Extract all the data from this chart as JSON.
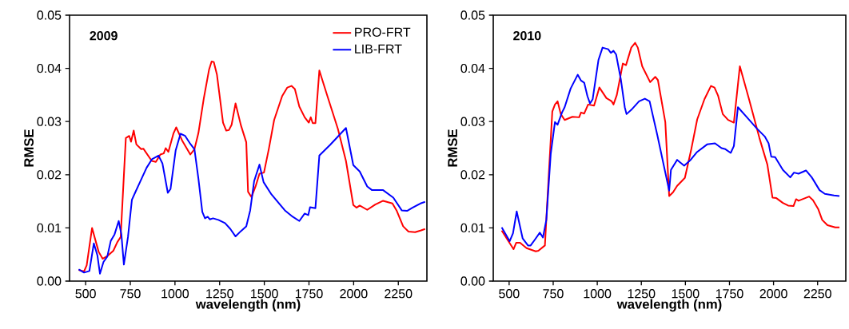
{
  "chart_data": [
    {
      "type": "line",
      "title": "2009",
      "xlabel": "wavelength (nm)",
      "ylabel": "RMSE",
      "legend": "top right",
      "grid": false,
      "marker": "none",
      "line_style": "solid",
      "xlim": [
        410,
        2410
      ],
      "xticks": [
        500,
        750,
        1000,
        1250,
        1500,
        1750,
        2000,
        2250
      ],
      "ylim": [
        0,
        0.05
      ],
      "yticks": [
        {
          "value": 0,
          "label": "0.00"
        },
        {
          "value": 0.01,
          "label": "0.01"
        },
        {
          "value": 0.02,
          "label": "0.02"
        },
        {
          "value": 0.03,
          "label": "0.03"
        },
        {
          "value": 0.04,
          "label": "0.04"
        },
        {
          "value": 0.05,
          "label": "0.05"
        }
      ],
      "series": [
        {
          "name": "PRO-FRT",
          "color": "#ff0000",
          "x": [
            461,
            491,
            506,
            536,
            558,
            573,
            595,
            625,
            655,
            677,
            696,
            725,
            744,
            754,
            769,
            784,
            811,
            823,
            870,
            893,
            918,
            937,
            948,
            963,
            992,
            1007,
            1042,
            1086,
            1109,
            1131,
            1161,
            1191,
            1205,
            1217,
            1235,
            1269,
            1287,
            1302,
            1317,
            1339,
            1369,
            1399,
            1409,
            1428,
            1451,
            1473,
            1498,
            1525,
            1555,
            1600,
            1629,
            1652,
            1671,
            1696,
            1726,
            1749,
            1760,
            1771,
            1786,
            1808,
            1853,
            1912,
            1957,
            1998,
            2016,
            2034,
            2076,
            2121,
            2165,
            2217,
            2240,
            2277,
            2307,
            2344,
            2374,
            2400
          ],
          "values": [
            0.0021,
            0.0018,
            0.003,
            0.01,
            0.0073,
            0.0055,
            0.0042,
            0.0048,
            0.0057,
            0.0073,
            0.0083,
            0.0269,
            0.0273,
            0.0262,
            0.0283,
            0.0257,
            0.0248,
            0.0249,
            0.0226,
            0.0224,
            0.0238,
            0.024,
            0.025,
            0.0243,
            0.0278,
            0.0289,
            0.0263,
            0.0238,
            0.0248,
            0.0278,
            0.0343,
            0.0398,
            0.0413,
            0.0412,
            0.0388,
            0.0298,
            0.0283,
            0.0284,
            0.0294,
            0.0334,
            0.0293,
            0.0261,
            0.0168,
            0.0158,
            0.0178,
            0.0202,
            0.0204,
            0.0248,
            0.0303,
            0.0348,
            0.0364,
            0.0367,
            0.0361,
            0.0328,
            0.0308,
            0.0298,
            0.0308,
            0.0297,
            0.0297,
            0.0396,
            0.0348,
            0.0286,
            0.0226,
            0.0143,
            0.0138,
            0.0142,
            0.0134,
            0.0144,
            0.0151,
            0.0146,
            0.0133,
            0.0103,
            0.0093,
            0.0092,
            0.0095,
            0.0098
          ]
        },
        {
          "name": "LIB-FRT",
          "color": "#0000ff",
          "x": [
            461,
            491,
            521,
            546,
            566,
            580,
            600,
            621,
            641,
            662,
            685,
            700,
            714,
            737,
            759,
            778,
            804,
            841,
            871,
            908,
            930,
            960,
            975,
            1004,
            1031,
            1057,
            1086,
            1109,
            1131,
            1153,
            1168,
            1183,
            1195,
            1213,
            1243,
            1280,
            1310,
            1339,
            1369,
            1399,
            1421,
            1443,
            1473,
            1496,
            1540,
            1615,
            1659,
            1696,
            1726,
            1746,
            1756,
            1786,
            1808,
            1868,
            1957,
            1998,
            2034,
            2076,
            2103,
            2165,
            2222,
            2269,
            2299,
            2329,
            2374,
            2400
          ],
          "values": [
            0.0022,
            0.0016,
            0.0019,
            0.0071,
            0.0048,
            0.0014,
            0.0036,
            0.0046,
            0.0076,
            0.0088,
            0.0113,
            0.0088,
            0.0031,
            0.0083,
            0.0153,
            0.0167,
            0.0186,
            0.0213,
            0.0229,
            0.0236,
            0.0221,
            0.0166,
            0.0173,
            0.0246,
            0.0277,
            0.0273,
            0.0258,
            0.0248,
            0.0193,
            0.013,
            0.0118,
            0.0121,
            0.0116,
            0.0118,
            0.0115,
            0.0109,
            0.0098,
            0.0084,
            0.0094,
            0.0103,
            0.0133,
            0.0188,
            0.0219,
            0.0186,
            0.0163,
            0.0133,
            0.0121,
            0.0113,
            0.0127,
            0.0124,
            0.0139,
            0.0137,
            0.0236,
            0.0256,
            0.0288,
            0.0218,
            0.0206,
            0.0178,
            0.0171,
            0.0171,
            0.0157,
            0.0133,
            0.0132,
            0.0138,
            0.0146,
            0.0149
          ]
        }
      ]
    },
    {
      "type": "line",
      "title": "2010",
      "xlabel": "wavelength (nm)",
      "ylabel": "RMSE",
      "grid": false,
      "marker": "none",
      "line_style": "solid",
      "xlim": [
        410,
        2410
      ],
      "xticks": [
        500,
        750,
        1000,
        1250,
        1500,
        1750,
        2000,
        2250
      ],
      "ylim": [
        0,
        0.05
      ],
      "yticks": [
        {
          "value": 0,
          "label": "0.00"
        },
        {
          "value": 0.01,
          "label": "0.01"
        },
        {
          "value": 0.02,
          "label": "0.02"
        },
        {
          "value": 0.03,
          "label": "0.03"
        },
        {
          "value": 0.04,
          "label": "0.04"
        },
        {
          "value": 0.05,
          "label": "0.05"
        }
      ],
      "series": [
        {
          "color": "#ff0000",
          "x": [
            458,
            496,
            525,
            540,
            562,
            599,
            651,
            666,
            703,
            725,
            745,
            760,
            775,
            793,
            815,
            859,
            897,
            908,
            926,
            948,
            982,
            1012,
            1052,
            1082,
            1092,
            1111,
            1145,
            1163,
            1193,
            1215,
            1230,
            1255,
            1300,
            1329,
            1344,
            1386,
            1408,
            1430,
            1453,
            1497,
            1534,
            1567,
            1608,
            1645,
            1665,
            1685,
            1712,
            1742,
            1775,
            1809,
            1861,
            1920,
            1965,
            1994,
            2016,
            2053,
            2083,
            2113,
            2128,
            2142,
            2202,
            2224,
            2254,
            2276,
            2306,
            2350,
            2374
          ],
          "values": [
            0.0095,
            0.0075,
            0.006,
            0.0072,
            0.0072,
            0.0062,
            0.0056,
            0.0057,
            0.0067,
            0.02,
            0.0319,
            0.0332,
            0.0338,
            0.0314,
            0.0303,
            0.0309,
            0.0308,
            0.0317,
            0.0315,
            0.0332,
            0.033,
            0.0364,
            0.0344,
            0.0338,
            0.0332,
            0.035,
            0.0409,
            0.0406,
            0.0439,
            0.0448,
            0.0439,
            0.0404,
            0.0374,
            0.0384,
            0.0378,
            0.0299,
            0.016,
            0.0167,
            0.0179,
            0.0194,
            0.0249,
            0.0304,
            0.0342,
            0.0367,
            0.0364,
            0.0349,
            0.0314,
            0.0303,
            0.0298,
            0.0404,
            0.0342,
            0.0269,
            0.0219,
            0.0157,
            0.0156,
            0.0147,
            0.0142,
            0.0141,
            0.0154,
            0.0151,
            0.0159,
            0.0152,
            0.0135,
            0.0115,
            0.0105,
            0.0101,
            0.0101
          ]
        },
        {
          "color": "#0000ff",
          "x": [
            458,
            503,
            522,
            543,
            577,
            607,
            622,
            644,
            674,
            692,
            711,
            736,
            760,
            775,
            800,
            815,
            849,
            889,
            908,
            926,
            944,
            959,
            974,
            1007,
            1030,
            1062,
            1077,
            1092,
            1107,
            1134,
            1156,
            1166,
            1193,
            1237,
            1270,
            1297,
            1341,
            1408,
            1418,
            1453,
            1493,
            1527,
            1564,
            1623,
            1668,
            1705,
            1727,
            1757,
            1775,
            1798,
            1846,
            1905,
            1950,
            1972,
            1987,
            2009,
            2053,
            2095,
            2116,
            2142,
            2184,
            2217,
            2261,
            2291,
            2343,
            2374
          ],
          "values": [
            0.0101,
            0.0075,
            0.009,
            0.0131,
            0.008,
            0.0067,
            0.0067,
            0.0077,
            0.0091,
            0.0082,
            0.0115,
            0.0239,
            0.0299,
            0.0294,
            0.0317,
            0.0327,
            0.0362,
            0.0388,
            0.0377,
            0.0373,
            0.0348,
            0.0334,
            0.0342,
            0.0416,
            0.0439,
            0.0436,
            0.0429,
            0.0433,
            0.0426,
            0.0379,
            0.0327,
            0.0314,
            0.0322,
            0.0338,
            0.0343,
            0.0338,
            0.0274,
            0.017,
            0.0209,
            0.0228,
            0.0217,
            0.0227,
            0.0242,
            0.0257,
            0.0259,
            0.025,
            0.0248,
            0.0241,
            0.0254,
            0.0327,
            0.0309,
            0.0287,
            0.0272,
            0.0259,
            0.0234,
            0.0233,
            0.0209,
            0.0195,
            0.0204,
            0.0202,
            0.0208,
            0.0195,
            0.0171,
            0.0164,
            0.0161,
            0.016
          ]
        }
      ]
    }
  ]
}
